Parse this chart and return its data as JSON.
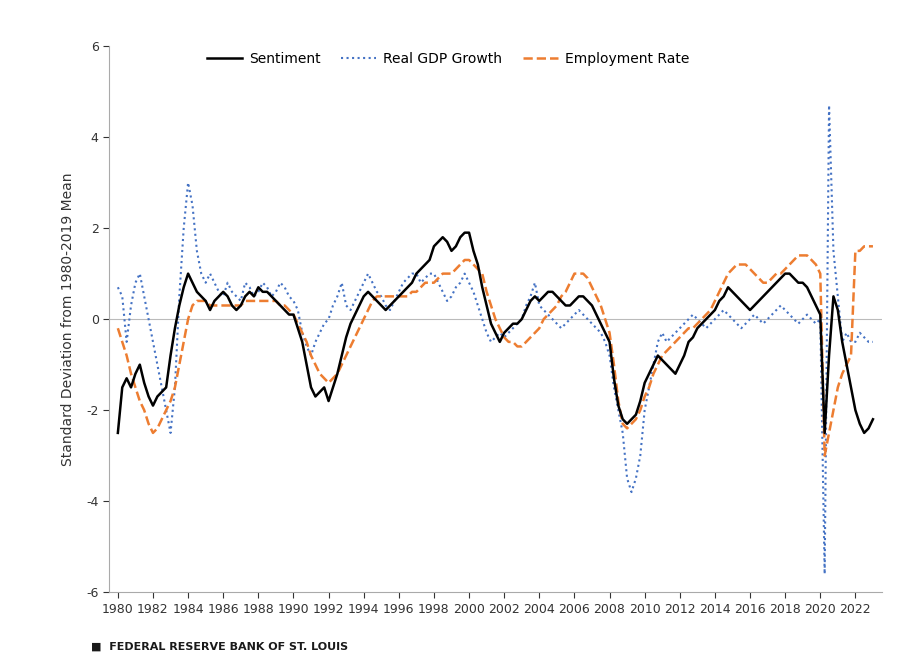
{
  "ylabel": "Standard Deviation from 1980-2019 Mean",
  "ylim": [
    -6,
    6
  ],
  "yticks": [
    -6,
    -4,
    -2,
    0,
    2,
    4,
    6
  ],
  "xlim": [
    1979.5,
    2023.5
  ],
  "xtick_labels": [
    "1980",
    "1982",
    "1984",
    "1986",
    "1988",
    "1990",
    "1992",
    "1994",
    "1996",
    "1998",
    "2000",
    "2002",
    "2004",
    "2006",
    "2008",
    "2010",
    "2012",
    "2014",
    "2016",
    "2018",
    "2020",
    "2022"
  ],
  "xtick_positions": [
    1980,
    1982,
    1984,
    1986,
    1988,
    1990,
    1992,
    1994,
    1996,
    1998,
    2000,
    2002,
    2004,
    2006,
    2008,
    2010,
    2012,
    2014,
    2016,
    2018,
    2020,
    2022
  ],
  "footer": "FEDERAL RESERVE BANK OF ST. LOUIS",
  "legend_items": [
    {
      "label": "Sentiment",
      "color": "#000000",
      "linestyle": "solid",
      "linewidth": 1.8
    },
    {
      "label": "Real GDP Growth",
      "color": "#4472C4",
      "linestyle": "dotted",
      "linewidth": 1.5
    },
    {
      "label": "Employment Rate",
      "color": "#ED7D31",
      "linestyle": "dashed",
      "linewidth": 1.8
    }
  ],
  "sentiment_x": [
    1980.0,
    1980.25,
    1980.5,
    1980.75,
    1981.0,
    1981.25,
    1981.5,
    1981.75,
    1982.0,
    1982.25,
    1982.5,
    1982.75,
    1983.0,
    1983.25,
    1983.5,
    1983.75,
    1984.0,
    1984.25,
    1984.5,
    1984.75,
    1985.0,
    1985.25,
    1985.5,
    1985.75,
    1986.0,
    1986.25,
    1986.5,
    1986.75,
    1987.0,
    1987.25,
    1987.5,
    1987.75,
    1988.0,
    1988.25,
    1988.5,
    1988.75,
    1989.0,
    1989.25,
    1989.5,
    1989.75,
    1990.0,
    1990.25,
    1990.5,
    1990.75,
    1991.0,
    1991.25,
    1991.5,
    1991.75,
    1992.0,
    1992.25,
    1992.5,
    1992.75,
    1993.0,
    1993.25,
    1993.5,
    1993.75,
    1994.0,
    1994.25,
    1994.5,
    1994.75,
    1995.0,
    1995.25,
    1995.5,
    1995.75,
    1996.0,
    1996.25,
    1996.5,
    1996.75,
    1997.0,
    1997.25,
    1997.5,
    1997.75,
    1998.0,
    1998.25,
    1998.5,
    1998.75,
    1999.0,
    1999.25,
    1999.5,
    1999.75,
    2000.0,
    2000.25,
    2000.5,
    2000.75,
    2001.0,
    2001.25,
    2001.5,
    2001.75,
    2002.0,
    2002.25,
    2002.5,
    2002.75,
    2003.0,
    2003.25,
    2003.5,
    2003.75,
    2004.0,
    2004.25,
    2004.5,
    2004.75,
    2005.0,
    2005.25,
    2005.5,
    2005.75,
    2006.0,
    2006.25,
    2006.5,
    2006.75,
    2007.0,
    2007.25,
    2007.5,
    2007.75,
    2008.0,
    2008.25,
    2008.5,
    2008.75,
    2009.0,
    2009.25,
    2009.5,
    2009.75,
    2010.0,
    2010.25,
    2010.5,
    2010.75,
    2011.0,
    2011.25,
    2011.5,
    2011.75,
    2012.0,
    2012.25,
    2012.5,
    2012.75,
    2013.0,
    2013.25,
    2013.5,
    2013.75,
    2014.0,
    2014.25,
    2014.5,
    2014.75,
    2015.0,
    2015.25,
    2015.5,
    2015.75,
    2016.0,
    2016.25,
    2016.5,
    2016.75,
    2017.0,
    2017.25,
    2017.5,
    2017.75,
    2018.0,
    2018.25,
    2018.5,
    2018.75,
    2019.0,
    2019.25,
    2019.5,
    2019.75,
    2020.0,
    2020.25,
    2020.5,
    2020.75,
    2021.0,
    2021.25,
    2021.5,
    2021.75,
    2022.0,
    2022.25,
    2022.5,
    2022.75,
    2023.0
  ],
  "sentiment_y": [
    -2.5,
    -1.5,
    -1.3,
    -1.5,
    -1.2,
    -1.0,
    -1.4,
    -1.7,
    -1.9,
    -1.7,
    -1.6,
    -1.5,
    -0.8,
    -0.2,
    0.3,
    0.7,
    1.0,
    0.8,
    0.6,
    0.5,
    0.4,
    0.2,
    0.4,
    0.5,
    0.6,
    0.5,
    0.3,
    0.2,
    0.3,
    0.5,
    0.6,
    0.5,
    0.7,
    0.6,
    0.6,
    0.5,
    0.4,
    0.3,
    0.2,
    0.1,
    0.1,
    -0.2,
    -0.5,
    -1.0,
    -1.5,
    -1.7,
    -1.6,
    -1.5,
    -1.8,
    -1.5,
    -1.2,
    -0.8,
    -0.4,
    -0.1,
    0.1,
    0.3,
    0.5,
    0.6,
    0.5,
    0.4,
    0.3,
    0.2,
    0.3,
    0.4,
    0.5,
    0.6,
    0.7,
    0.8,
    1.0,
    1.1,
    1.2,
    1.3,
    1.6,
    1.7,
    1.8,
    1.7,
    1.5,
    1.6,
    1.8,
    1.9,
    1.9,
    1.5,
    1.2,
    0.7,
    0.3,
    -0.1,
    -0.3,
    -0.5,
    -0.3,
    -0.2,
    -0.1,
    -0.1,
    0.0,
    0.2,
    0.4,
    0.5,
    0.4,
    0.5,
    0.6,
    0.6,
    0.5,
    0.4,
    0.3,
    0.3,
    0.4,
    0.5,
    0.5,
    0.4,
    0.3,
    0.1,
    -0.1,
    -0.3,
    -0.5,
    -1.3,
    -1.9,
    -2.2,
    -2.3,
    -2.2,
    -2.1,
    -1.8,
    -1.4,
    -1.2,
    -1.0,
    -0.8,
    -0.9,
    -1.0,
    -1.1,
    -1.2,
    -1.0,
    -0.8,
    -0.5,
    -0.4,
    -0.2,
    -0.1,
    0.0,
    0.1,
    0.2,
    0.4,
    0.5,
    0.7,
    0.6,
    0.5,
    0.4,
    0.3,
    0.2,
    0.3,
    0.4,
    0.5,
    0.6,
    0.7,
    0.8,
    0.9,
    1.0,
    1.0,
    0.9,
    0.8,
    0.8,
    0.7,
    0.5,
    0.3,
    0.1,
    -2.5,
    -0.8,
    0.5,
    0.2,
    -0.5,
    -1.0,
    -1.5,
    -2.0,
    -2.3,
    -2.5,
    -2.4,
    -2.2
  ],
  "gdp_x": [
    1980.0,
    1980.25,
    1980.5,
    1980.75,
    1981.0,
    1981.25,
    1981.5,
    1981.75,
    1982.0,
    1982.25,
    1982.5,
    1982.75,
    1983.0,
    1983.25,
    1983.5,
    1983.75,
    1984.0,
    1984.25,
    1984.5,
    1984.75,
    1985.0,
    1985.25,
    1985.5,
    1985.75,
    1986.0,
    1986.25,
    1986.5,
    1986.75,
    1987.0,
    1987.25,
    1987.5,
    1987.75,
    1988.0,
    1988.25,
    1988.5,
    1988.75,
    1989.0,
    1989.25,
    1989.5,
    1989.75,
    1990.0,
    1990.25,
    1990.5,
    1990.75,
    1991.0,
    1991.25,
    1991.5,
    1991.75,
    1992.0,
    1992.25,
    1992.5,
    1992.75,
    1993.0,
    1993.25,
    1993.5,
    1993.75,
    1994.0,
    1994.25,
    1994.5,
    1994.75,
    1995.0,
    1995.25,
    1995.5,
    1995.75,
    1996.0,
    1996.25,
    1996.5,
    1996.75,
    1997.0,
    1997.25,
    1997.5,
    1997.75,
    1998.0,
    1998.25,
    1998.5,
    1998.75,
    1999.0,
    1999.25,
    1999.5,
    1999.75,
    2000.0,
    2000.25,
    2000.5,
    2000.75,
    2001.0,
    2001.25,
    2001.5,
    2001.75,
    2002.0,
    2002.25,
    2002.5,
    2002.75,
    2003.0,
    2003.25,
    2003.5,
    2003.75,
    2004.0,
    2004.25,
    2004.5,
    2004.75,
    2005.0,
    2005.25,
    2005.5,
    2005.75,
    2006.0,
    2006.25,
    2006.5,
    2006.75,
    2007.0,
    2007.25,
    2007.5,
    2007.75,
    2008.0,
    2008.25,
    2008.5,
    2008.75,
    2009.0,
    2009.25,
    2009.5,
    2009.75,
    2010.0,
    2010.25,
    2010.5,
    2010.75,
    2011.0,
    2011.25,
    2011.5,
    2011.75,
    2012.0,
    2012.25,
    2012.5,
    2012.75,
    2013.0,
    2013.25,
    2013.5,
    2013.75,
    2014.0,
    2014.25,
    2014.5,
    2014.75,
    2015.0,
    2015.25,
    2015.5,
    2015.75,
    2016.0,
    2016.25,
    2016.5,
    2016.75,
    2017.0,
    2017.25,
    2017.5,
    2017.75,
    2018.0,
    2018.25,
    2018.5,
    2018.75,
    2019.0,
    2019.25,
    2019.5,
    2019.75,
    2020.0,
    2020.25,
    2020.5,
    2020.75,
    2021.0,
    2021.25,
    2021.5,
    2021.75,
    2022.0,
    2022.25,
    2022.5,
    2022.75,
    2023.0
  ],
  "gdp_y": [
    0.7,
    0.5,
    -0.5,
    0.3,
    0.8,
    1.0,
    0.5,
    0.0,
    -0.5,
    -1.0,
    -1.5,
    -2.0,
    -2.5,
    -1.5,
    0.5,
    2.0,
    3.0,
    2.5,
    1.5,
    1.0,
    0.8,
    1.0,
    0.8,
    0.6,
    0.5,
    0.8,
    0.6,
    0.5,
    0.4,
    0.8,
    0.7,
    0.5,
    0.6,
    0.8,
    0.7,
    0.5,
    0.6,
    0.8,
    0.7,
    0.5,
    0.4,
    0.2,
    -0.3,
    -0.6,
    -0.8,
    -0.5,
    -0.3,
    -0.1,
    0.0,
    0.3,
    0.5,
    0.8,
    0.3,
    0.2,
    0.4,
    0.6,
    0.8,
    1.0,
    0.8,
    0.6,
    0.5,
    0.3,
    0.2,
    0.4,
    0.6,
    0.8,
    0.9,
    1.0,
    1.0,
    0.8,
    0.9,
    1.0,
    1.0,
    0.8,
    0.6,
    0.4,
    0.5,
    0.7,
    0.8,
    1.0,
    0.8,
    0.6,
    0.3,
    0.0,
    -0.3,
    -0.5,
    -0.4,
    -0.3,
    -0.4,
    -0.3,
    -0.2,
    -0.1,
    0.0,
    0.3,
    0.5,
    0.8,
    0.3,
    0.2,
    0.1,
    0.0,
    -0.1,
    -0.2,
    -0.1,
    0.0,
    0.1,
    0.2,
    0.1,
    0.0,
    -0.1,
    -0.2,
    -0.3,
    -0.5,
    -0.8,
    -1.5,
    -2.0,
    -2.5,
    -3.5,
    -3.8,
    -3.5,
    -3.0,
    -2.0,
    -1.5,
    -1.0,
    -0.5,
    -0.3,
    -0.5,
    -0.4,
    -0.3,
    -0.2,
    -0.1,
    0.0,
    0.1,
    0.0,
    -0.1,
    -0.2,
    -0.1,
    0.0,
    0.1,
    0.2,
    0.1,
    0.0,
    -0.1,
    -0.2,
    -0.1,
    0.0,
    0.1,
    0.0,
    -0.1,
    0.0,
    0.1,
    0.2,
    0.3,
    0.2,
    0.1,
    0.0,
    -0.1,
    0.0,
    0.1,
    0.0,
    -0.1,
    0.0,
    -5.6,
    4.7,
    1.5,
    0.5,
    -0.5,
    -0.3,
    -0.5,
    -0.5,
    -0.3,
    -0.4,
    -0.5,
    -0.5
  ],
  "emp_x": [
    1980.0,
    1980.25,
    1980.5,
    1980.75,
    1981.0,
    1981.25,
    1981.5,
    1981.75,
    1982.0,
    1982.25,
    1982.5,
    1982.75,
    1983.0,
    1983.25,
    1983.5,
    1983.75,
    1984.0,
    1984.25,
    1984.5,
    1984.75,
    1985.0,
    1985.25,
    1985.5,
    1985.75,
    1986.0,
    1986.25,
    1986.5,
    1986.75,
    1987.0,
    1987.25,
    1987.5,
    1987.75,
    1988.0,
    1988.25,
    1988.5,
    1988.75,
    1989.0,
    1989.25,
    1989.5,
    1989.75,
    1990.0,
    1990.25,
    1990.5,
    1990.75,
    1991.0,
    1991.25,
    1991.5,
    1991.75,
    1992.0,
    1992.25,
    1992.5,
    1992.75,
    1993.0,
    1993.25,
    1993.5,
    1993.75,
    1994.0,
    1994.25,
    1994.5,
    1994.75,
    1995.0,
    1995.25,
    1995.5,
    1995.75,
    1996.0,
    1996.25,
    1996.5,
    1996.75,
    1997.0,
    1997.25,
    1997.5,
    1997.75,
    1998.0,
    1998.25,
    1998.5,
    1998.75,
    1999.0,
    1999.25,
    1999.5,
    1999.75,
    2000.0,
    2000.25,
    2000.5,
    2000.75,
    2001.0,
    2001.25,
    2001.5,
    2001.75,
    2002.0,
    2002.25,
    2002.5,
    2002.75,
    2003.0,
    2003.25,
    2003.5,
    2003.75,
    2004.0,
    2004.25,
    2004.5,
    2004.75,
    2005.0,
    2005.25,
    2005.5,
    2005.75,
    2006.0,
    2006.25,
    2006.5,
    2006.75,
    2007.0,
    2007.25,
    2007.5,
    2007.75,
    2008.0,
    2008.25,
    2008.5,
    2008.75,
    2009.0,
    2009.25,
    2009.5,
    2009.75,
    2010.0,
    2010.25,
    2010.5,
    2010.75,
    2011.0,
    2011.25,
    2011.5,
    2011.75,
    2012.0,
    2012.25,
    2012.5,
    2012.75,
    2013.0,
    2013.25,
    2013.5,
    2013.75,
    2014.0,
    2014.25,
    2014.5,
    2014.75,
    2015.0,
    2015.25,
    2015.5,
    2015.75,
    2016.0,
    2016.25,
    2016.5,
    2016.75,
    2017.0,
    2017.25,
    2017.5,
    2017.75,
    2018.0,
    2018.25,
    2018.5,
    2018.75,
    2019.0,
    2019.25,
    2019.5,
    2019.75,
    2020.0,
    2020.25,
    2020.5,
    2020.75,
    2021.0,
    2021.25,
    2021.5,
    2021.75,
    2022.0,
    2022.25,
    2022.5,
    2022.75,
    2023.0
  ],
  "emp_y": [
    -0.2,
    -0.5,
    -0.8,
    -1.2,
    -1.5,
    -1.8,
    -2.0,
    -2.3,
    -2.5,
    -2.4,
    -2.2,
    -2.0,
    -1.8,
    -1.5,
    -1.0,
    -0.5,
    0.0,
    0.3,
    0.4,
    0.4,
    0.4,
    0.3,
    0.3,
    0.3,
    0.3,
    0.3,
    0.3,
    0.3,
    0.3,
    0.4,
    0.4,
    0.4,
    0.4,
    0.4,
    0.4,
    0.4,
    0.4,
    0.3,
    0.3,
    0.2,
    0.1,
    -0.1,
    -0.3,
    -0.5,
    -0.8,
    -1.0,
    -1.2,
    -1.3,
    -1.4,
    -1.3,
    -1.2,
    -1.0,
    -0.8,
    -0.6,
    -0.4,
    -0.2,
    0.0,
    0.2,
    0.4,
    0.5,
    0.5,
    0.5,
    0.5,
    0.5,
    0.5,
    0.5,
    0.5,
    0.6,
    0.6,
    0.7,
    0.8,
    0.8,
    0.8,
    0.9,
    1.0,
    1.0,
    1.0,
    1.1,
    1.2,
    1.3,
    1.3,
    1.2,
    1.1,
    1.0,
    0.6,
    0.3,
    0.0,
    -0.2,
    -0.4,
    -0.5,
    -0.5,
    -0.6,
    -0.6,
    -0.5,
    -0.4,
    -0.3,
    -0.2,
    0.0,
    0.1,
    0.2,
    0.3,
    0.5,
    0.6,
    0.8,
    1.0,
    1.0,
    1.0,
    0.9,
    0.7,
    0.5,
    0.3,
    0.0,
    -0.3,
    -1.0,
    -1.8,
    -2.3,
    -2.4,
    -2.3,
    -2.2,
    -2.0,
    -1.7,
    -1.5,
    -1.2,
    -1.0,
    -0.8,
    -0.7,
    -0.6,
    -0.5,
    -0.4,
    -0.3,
    -0.2,
    -0.2,
    -0.1,
    0.0,
    0.1,
    0.2,
    0.4,
    0.6,
    0.8,
    1.0,
    1.1,
    1.2,
    1.2,
    1.2,
    1.1,
    1.0,
    0.9,
    0.8,
    0.8,
    0.9,
    1.0,
    1.0,
    1.1,
    1.2,
    1.3,
    1.4,
    1.4,
    1.4,
    1.3,
    1.2,
    1.0,
    -3.0,
    -2.5,
    -2.0,
    -1.5,
    -1.2,
    -1.0,
    -0.8,
    1.5,
    1.5,
    1.6,
    1.6,
    1.6
  ],
  "background_color": "#ffffff",
  "spine_color": "#aaaaaa",
  "tick_color": "#333333",
  "grid_color": "#bbbbbb"
}
